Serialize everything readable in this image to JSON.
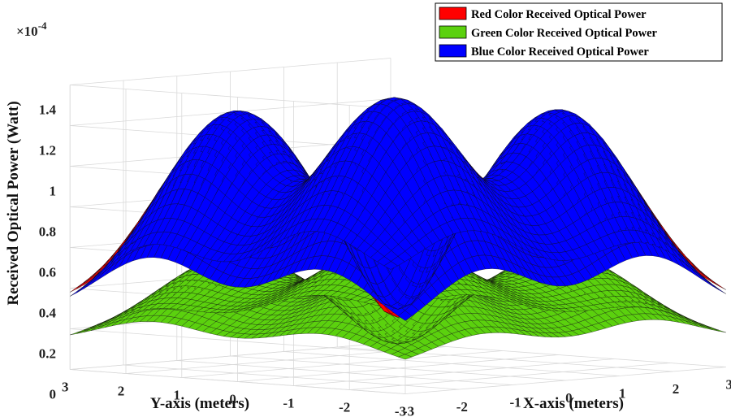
{
  "chart_data": {
    "type": "surface",
    "xlabel": "X-axis (meters)",
    "ylabel": "Y-axis (meters)",
    "zlabel": "Received Optical Power (Watt)",
    "z_exponent": "×10",
    "z_exponent_power": "-4",
    "x_ticks": [
      "-3",
      "-2",
      "-1",
      "0",
      "1",
      "2",
      "3"
    ],
    "y_ticks": [
      "3",
      "2",
      "1",
      "0",
      "-1",
      "-2",
      "-3"
    ],
    "z_ticks": [
      "0",
      "0.2",
      "0.4",
      "0.6",
      "0.8",
      "1",
      "1.2",
      "1.4"
    ],
    "xlim": [
      -3,
      3
    ],
    "ylim": [
      -3,
      3
    ],
    "zlim": [
      0,
      1.4
    ],
    "grid": true,
    "legend_position": "top-right",
    "sources_xy": [
      [
        -1.5,
        -1.5
      ],
      [
        -1.5,
        1.5
      ],
      [
        1.5,
        -1.5
      ],
      [
        1.5,
        1.5
      ]
    ],
    "series": [
      {
        "name": "Red Color Received Optical Power",
        "color": "#ff0000",
        "peak": 1.26,
        "corner": 0.38,
        "center": 0.25
      },
      {
        "name": "Green Color Received Optical Power",
        "color": "#5bd10e",
        "peak": 0.56,
        "corner": 0.17,
        "center": 0.12
      },
      {
        "name": "Blue Color Received Optical Power",
        "color": "#0000ff",
        "peak": 1.27,
        "corner": 0.36,
        "center": 0.29
      }
    ]
  }
}
